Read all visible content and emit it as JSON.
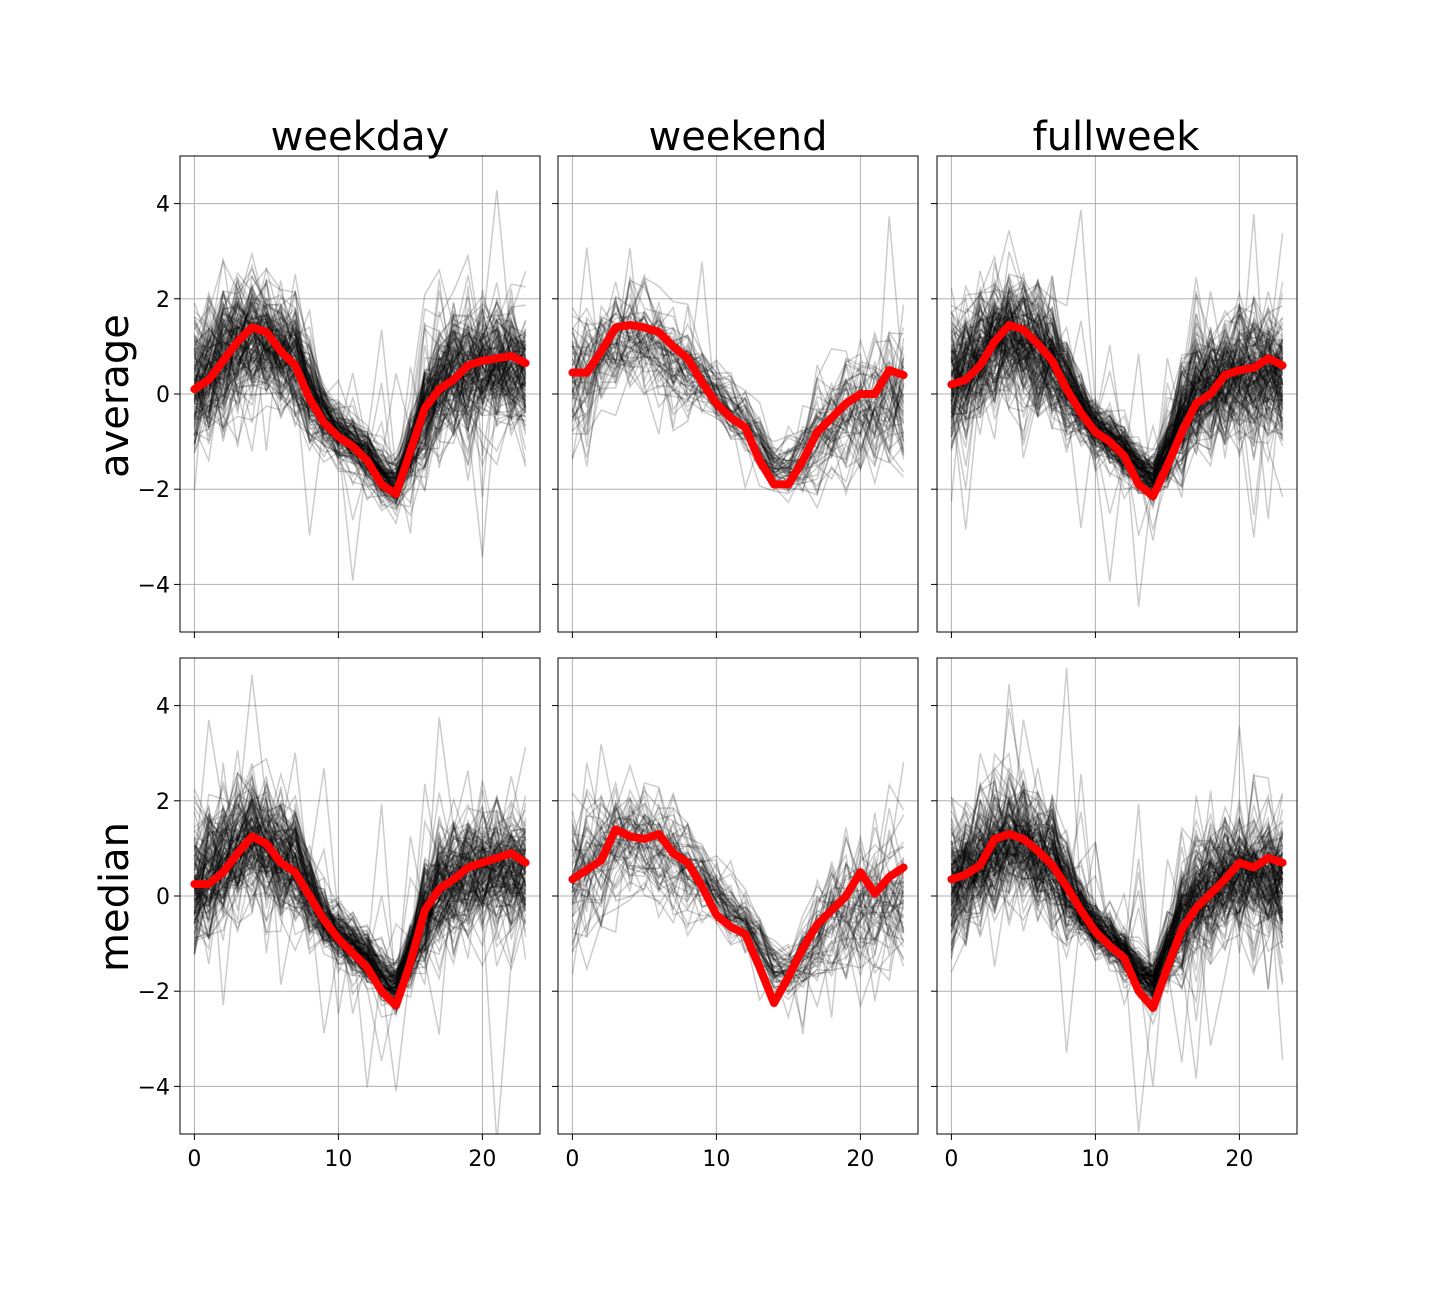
{
  "figure": {
    "column_titles": [
      "weekday",
      "weekend",
      "fullweek"
    ],
    "row_labels": [
      "average",
      "median"
    ],
    "colors": {
      "profile": "#000000",
      "summary": "#ff0000",
      "grid": "#b0b0b0",
      "axes": "#000000"
    }
  },
  "chart_data": [
    {
      "type": "line",
      "row": "average",
      "column": "weekday",
      "xlim": [
        -1,
        24
      ],
      "ylim": [
        -5,
        5
      ],
      "xticks": [
        0,
        10,
        20
      ],
      "yticks": [
        -4,
        -2,
        0,
        2,
        4
      ],
      "grid": true,
      "x": [
        0,
        1,
        2,
        3,
        4,
        5,
        6,
        7,
        8,
        9,
        10,
        11,
        12,
        13,
        14,
        15,
        16,
        17,
        18,
        19,
        20,
        21,
        22,
        23
      ],
      "series": [
        {
          "role": "summary",
          "values": [
            0.1,
            0.3,
            0.7,
            1.1,
            1.4,
            1.3,
            0.9,
            0.6,
            -0.1,
            -0.6,
            -0.9,
            -1.1,
            -1.4,
            -1.9,
            -2.1,
            -1.2,
            -0.3,
            0.1,
            0.3,
            0.6,
            0.7,
            0.75,
            0.8,
            0.65
          ]
        }
      ],
      "profiles": {
        "count": 150,
        "opacity": 0.2,
        "base": [
          0.3,
          0.5,
          0.8,
          1.0,
          1.2,
          1.1,
          0.9,
          0.7,
          0.1,
          -0.5,
          -0.8,
          -1.0,
          -1.3,
          -1.7,
          -1.9,
          -1.2,
          -0.3,
          0.2,
          0.4,
          0.5,
          0.6,
          0.6,
          0.6,
          0.5
        ],
        "spread": [
          1.0,
          1.0,
          1.0,
          0.9,
          0.9,
          0.9,
          0.9,
          0.9,
          0.6,
          0.4,
          0.35,
          0.35,
          0.35,
          0.3,
          0.3,
          0.5,
          0.9,
          0.9,
          0.9,
          0.9,
          0.9,
          0.9,
          0.9,
          0.9
        ]
      }
    },
    {
      "type": "line",
      "row": "average",
      "column": "weekend",
      "xlim": [
        -1,
        24
      ],
      "ylim": [
        -5,
        5
      ],
      "xticks": [
        0,
        10,
        20
      ],
      "yticks": [
        -4,
        -2,
        0,
        2,
        4
      ],
      "grid": true,
      "x": [
        0,
        1,
        2,
        3,
        4,
        5,
        6,
        7,
        8,
        9,
        10,
        11,
        12,
        13,
        14,
        15,
        16,
        17,
        18,
        19,
        20,
        21,
        22,
        23
      ],
      "series": [
        {
          "role": "summary",
          "values": [
            0.45,
            0.45,
            0.9,
            1.4,
            1.45,
            1.4,
            1.3,
            1.0,
            0.75,
            0.25,
            -0.2,
            -0.5,
            -0.7,
            -1.4,
            -1.9,
            -1.9,
            -1.4,
            -0.8,
            -0.5,
            -0.2,
            0.0,
            0.0,
            0.5,
            0.4
          ]
        }
      ],
      "profiles": {
        "count": 60,
        "opacity": 0.2,
        "base": [
          0.3,
          0.5,
          0.8,
          1.1,
          1.2,
          1.1,
          1.0,
          0.8,
          0.6,
          0.3,
          0.0,
          -0.3,
          -0.6,
          -1.0,
          -1.5,
          -1.6,
          -1.3,
          -0.9,
          -0.6,
          -0.4,
          -0.3,
          -0.2,
          -0.1,
          0.0
        ],
        "spread": [
          1.0,
          1.0,
          0.9,
          0.8,
          0.7,
          0.7,
          0.7,
          0.7,
          0.6,
          0.5,
          0.4,
          0.4,
          0.4,
          0.4,
          0.3,
          0.35,
          0.45,
          0.6,
          0.8,
          0.9,
          1.0,
          1.0,
          1.0,
          1.0
        ]
      }
    },
    {
      "type": "line",
      "row": "average",
      "column": "fullweek",
      "xlim": [
        -1,
        24
      ],
      "ylim": [
        -5,
        5
      ],
      "xticks": [
        0,
        10,
        20
      ],
      "yticks": [
        -4,
        -2,
        0,
        2,
        4
      ],
      "grid": true,
      "x": [
        0,
        1,
        2,
        3,
        4,
        5,
        6,
        7,
        8,
        9,
        10,
        11,
        12,
        13,
        14,
        15,
        16,
        17,
        18,
        19,
        20,
        21,
        22,
        23
      ],
      "series": [
        {
          "role": "summary",
          "values": [
            0.2,
            0.3,
            0.6,
            1.1,
            1.45,
            1.35,
            1.05,
            0.7,
            0.1,
            -0.4,
            -0.8,
            -1.0,
            -1.3,
            -1.9,
            -2.15,
            -1.5,
            -0.8,
            -0.2,
            0.0,
            0.4,
            0.5,
            0.55,
            0.75,
            0.6
          ]
        }
      ],
      "profiles": {
        "count": 160,
        "opacity": 0.2,
        "base": [
          0.3,
          0.5,
          0.8,
          1.0,
          1.2,
          1.1,
          0.9,
          0.7,
          0.2,
          -0.3,
          -0.7,
          -0.9,
          -1.2,
          -1.6,
          -1.8,
          -1.2,
          -0.5,
          0.0,
          0.2,
          0.3,
          0.4,
          0.4,
          0.4,
          0.3
        ],
        "spread": [
          1.0,
          1.0,
          1.0,
          0.9,
          0.9,
          0.9,
          0.9,
          0.9,
          0.6,
          0.45,
          0.4,
          0.35,
          0.35,
          0.3,
          0.3,
          0.5,
          0.8,
          0.9,
          0.9,
          0.9,
          0.9,
          0.9,
          0.9,
          0.9
        ]
      }
    },
    {
      "type": "line",
      "row": "median",
      "column": "weekday",
      "xlim": [
        -1,
        24
      ],
      "ylim": [
        -5,
        5
      ],
      "xticks": [
        0,
        10,
        20
      ],
      "yticks": [
        -4,
        -2,
        0,
        2,
        4
      ],
      "grid": true,
      "x": [
        0,
        1,
        2,
        3,
        4,
        5,
        6,
        7,
        8,
        9,
        10,
        11,
        12,
        13,
        14,
        15,
        16,
        17,
        18,
        19,
        20,
        21,
        22,
        23
      ],
      "series": [
        {
          "role": "summary",
          "values": [
            0.25,
            0.25,
            0.5,
            0.9,
            1.25,
            1.1,
            0.7,
            0.5,
            0.0,
            -0.5,
            -0.9,
            -1.2,
            -1.5,
            -2.0,
            -2.3,
            -1.4,
            -0.3,
            0.15,
            0.35,
            0.6,
            0.7,
            0.8,
            0.9,
            0.7
          ]
        }
      ],
      "profiles": {
        "count": 150,
        "opacity": 0.2,
        "base": [
          0.3,
          0.5,
          0.8,
          1.0,
          1.2,
          1.1,
          0.9,
          0.7,
          0.1,
          -0.5,
          -0.8,
          -1.0,
          -1.3,
          -1.7,
          -1.9,
          -1.2,
          -0.3,
          0.2,
          0.4,
          0.5,
          0.6,
          0.6,
          0.6,
          0.5
        ],
        "spread": [
          1.0,
          1.0,
          1.0,
          0.9,
          0.9,
          0.9,
          0.9,
          0.9,
          0.6,
          0.4,
          0.35,
          0.35,
          0.35,
          0.3,
          0.3,
          0.5,
          0.9,
          0.9,
          0.9,
          0.9,
          0.9,
          0.9,
          0.9,
          0.9
        ]
      }
    },
    {
      "type": "line",
      "row": "median",
      "column": "weekend",
      "xlim": [
        -1,
        24
      ],
      "ylim": [
        -5,
        5
      ],
      "xticks": [
        0,
        10,
        20
      ],
      "yticks": [
        -4,
        -2,
        0,
        2,
        4
      ],
      "grid": true,
      "x": [
        0,
        1,
        2,
        3,
        4,
        5,
        6,
        7,
        8,
        9,
        10,
        11,
        12,
        13,
        14,
        15,
        16,
        17,
        18,
        19,
        20,
        21,
        22,
        23
      ],
      "series": [
        {
          "role": "summary",
          "values": [
            0.35,
            0.55,
            0.75,
            1.4,
            1.25,
            1.2,
            1.3,
            0.9,
            0.7,
            0.2,
            -0.4,
            -0.65,
            -0.8,
            -1.5,
            -2.25,
            -1.7,
            -1.1,
            -0.6,
            -0.3,
            0.0,
            0.5,
            0.05,
            0.4,
            0.6
          ]
        }
      ],
      "profiles": {
        "count": 60,
        "opacity": 0.2,
        "base": [
          0.3,
          0.5,
          0.8,
          1.1,
          1.2,
          1.1,
          1.0,
          0.8,
          0.6,
          0.3,
          0.0,
          -0.3,
          -0.6,
          -1.0,
          -1.5,
          -1.6,
          -1.3,
          -0.9,
          -0.6,
          -0.4,
          -0.3,
          -0.2,
          -0.1,
          0.0
        ],
        "spread": [
          1.0,
          1.0,
          0.9,
          0.8,
          0.7,
          0.7,
          0.7,
          0.7,
          0.6,
          0.5,
          0.4,
          0.4,
          0.4,
          0.4,
          0.3,
          0.35,
          0.45,
          0.6,
          0.8,
          0.9,
          1.0,
          1.0,
          1.0,
          1.0
        ]
      }
    },
    {
      "type": "line",
      "row": "median",
      "column": "fullweek",
      "xlim": [
        -1,
        24
      ],
      "ylim": [
        -5,
        5
      ],
      "xticks": [
        0,
        10,
        20
      ],
      "yticks": [
        -4,
        -2,
        0,
        2,
        4
      ],
      "grid": true,
      "x": [
        0,
        1,
        2,
        3,
        4,
        5,
        6,
        7,
        8,
        9,
        10,
        11,
        12,
        13,
        14,
        15,
        16,
        17,
        18,
        19,
        20,
        21,
        22,
        23
      ],
      "series": [
        {
          "role": "summary",
          "values": [
            0.35,
            0.45,
            0.65,
            1.2,
            1.3,
            1.2,
            0.95,
            0.65,
            0.2,
            -0.3,
            -0.75,
            -1.05,
            -1.3,
            -2.0,
            -2.35,
            -1.5,
            -0.7,
            -0.25,
            0.05,
            0.35,
            0.7,
            0.6,
            0.8,
            0.7
          ]
        }
      ],
      "profiles": {
        "count": 160,
        "opacity": 0.2,
        "base": [
          0.3,
          0.5,
          0.8,
          1.0,
          1.2,
          1.1,
          0.9,
          0.7,
          0.2,
          -0.3,
          -0.7,
          -0.9,
          -1.2,
          -1.6,
          -1.8,
          -1.2,
          -0.5,
          0.0,
          0.2,
          0.3,
          0.4,
          0.4,
          0.4,
          0.3
        ],
        "spread": [
          1.0,
          1.0,
          1.0,
          0.9,
          0.9,
          0.9,
          0.9,
          0.9,
          0.6,
          0.45,
          0.4,
          0.35,
          0.35,
          0.3,
          0.3,
          0.5,
          0.8,
          0.9,
          0.9,
          0.9,
          0.9,
          0.9,
          0.9,
          0.9
        ]
      }
    }
  ]
}
